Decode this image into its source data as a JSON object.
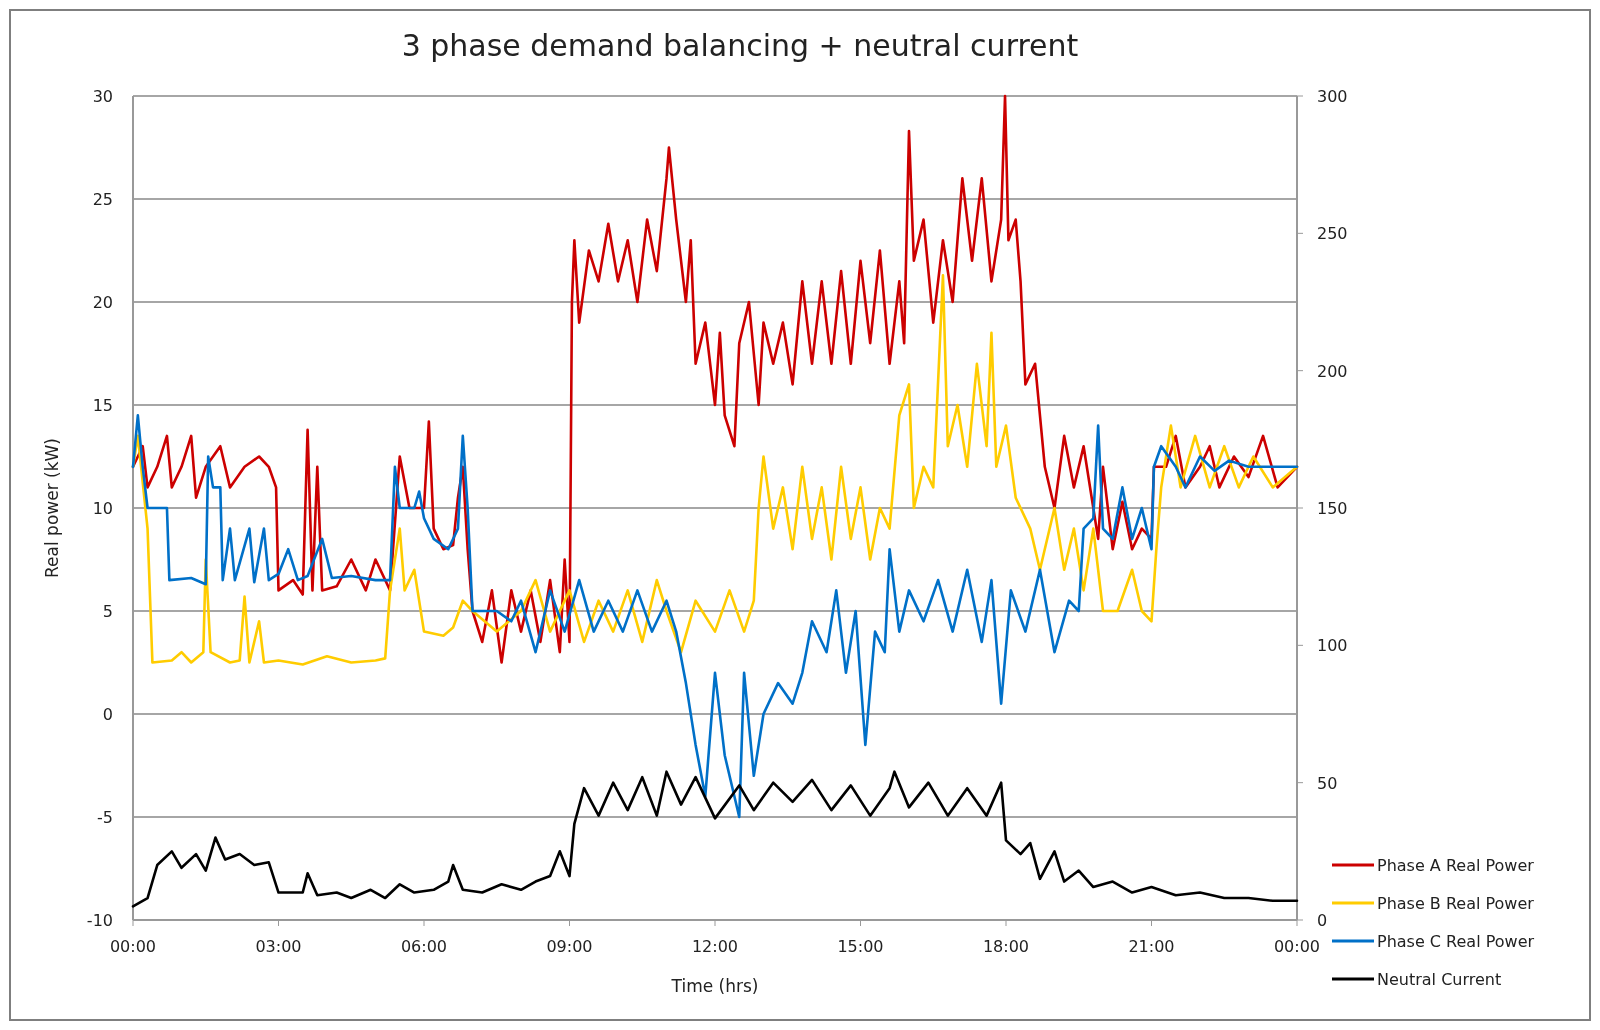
{
  "chart_data": {
    "type": "line",
    "title": "3 phase demand balancing + neutral current",
    "xlabel": "Time (hrs)",
    "ylabel": "Real power (kW)",
    "xlim": [
      0,
      24
    ],
    "xticks": [
      {
        "value": 0,
        "label": "00:00"
      },
      {
        "value": 3,
        "label": "03:00"
      },
      {
        "value": 6,
        "label": "06:00"
      },
      {
        "value": 9,
        "label": "09:00"
      },
      {
        "value": 12,
        "label": "12:00"
      },
      {
        "value": 15,
        "label": "15:00"
      },
      {
        "value": 18,
        "label": "18:00"
      },
      {
        "value": 21,
        "label": "21:00"
      },
      {
        "value": 24,
        "label": "00:00"
      }
    ],
    "ylim": [
      -10,
      30
    ],
    "yticks": [
      -10,
      -5,
      0,
      5,
      10,
      15,
      20,
      25,
      30
    ],
    "y2lim": [
      0,
      300
    ],
    "y2ticks": [
      0,
      50,
      100,
      150,
      200,
      250,
      300
    ],
    "grid": "y",
    "legend": "right",
    "marker": "none",
    "line_style": "solid",
    "series": [
      {
        "name": "Phase A Real Power",
        "color": "#cc0000",
        "x": [
          0,
          0.2,
          0.3,
          0.5,
          0.7,
          0.8,
          1,
          1.2,
          1.3,
          1.5,
          1.8,
          2,
          2.3,
          2.6,
          2.8,
          2.95,
          3,
          3.3,
          3.5,
          3.6,
          3.7,
          3.8,
          3.9,
          4.2,
          4.5,
          4.8,
          5,
          5.3,
          5.5,
          5.7,
          6,
          6.1,
          6.2,
          6.4,
          6.6,
          6.7,
          6.8,
          6.9,
          7,
          7.2,
          7.4,
          7.6,
          7.8,
          8,
          8.2,
          8.4,
          8.6,
          8.8,
          8.9,
          9,
          9.05,
          9.1,
          9.2,
          9.4,
          9.6,
          9.8,
          10,
          10.2,
          10.4,
          10.6,
          10.8,
          11,
          11.05,
          11.2,
          11.4,
          11.5,
          11.6,
          11.8,
          12,
          12.1,
          12.2,
          12.4,
          12.5,
          12.7,
          12.9,
          13,
          13.2,
          13.4,
          13.6,
          13.8,
          14,
          14.2,
          14.4,
          14.6,
          14.8,
          15,
          15.2,
          15.4,
          15.6,
          15.8,
          15.9,
          16,
          16.1,
          16.3,
          16.5,
          16.7,
          16.9,
          17.1,
          17.3,
          17.5,
          17.7,
          17.9,
          17.98,
          18.05,
          18.2,
          18.3,
          18.4,
          18.6,
          18.8,
          19,
          19.2,
          19.4,
          19.6,
          19.8,
          19.9,
          20,
          20.2,
          20.4,
          20.6,
          20.8,
          21,
          21.05,
          21.3,
          21.5,
          21.7,
          22,
          22.2,
          22.4,
          22.7,
          23,
          23.3,
          23.6,
          24
        ],
        "values": [
          12,
          13,
          11,
          12,
          13.5,
          11,
          12,
          13.5,
          10.5,
          12,
          13,
          11,
          12,
          12.5,
          12,
          11,
          6,
          6.5,
          5.8,
          13.8,
          6,
          12,
          6,
          6.2,
          7.5,
          6,
          7.5,
          6,
          12.5,
          10,
          10,
          14.2,
          9,
          8,
          8.2,
          10.5,
          12,
          8,
          5,
          3.5,
          6,
          2.5,
          6,
          4,
          6,
          3.5,
          6.5,
          3,
          7.5,
          3.5,
          20,
          23,
          19,
          22.5,
          21,
          23.8,
          21,
          23,
          20,
          24,
          21.5,
          26,
          27.5,
          24,
          20,
          23,
          17,
          19,
          15,
          18.5,
          14.5,
          13,
          18,
          20,
          15,
          19,
          17,
          19,
          16,
          21,
          17,
          21,
          17,
          21.5,
          17,
          22,
          18,
          22.5,
          17,
          21,
          18,
          28.3,
          22,
          24,
          19,
          23,
          20,
          26,
          22,
          26,
          21,
          24,
          30,
          23,
          24,
          21,
          16,
          17,
          12,
          10,
          13.5,
          11,
          13,
          10,
          8.5,
          12,
          8,
          10.3,
          8,
          9,
          8.5,
          12,
          12,
          13.5,
          11,
          12,
          13,
          11,
          12.5,
          11.5,
          13.5,
          11,
          12
        ]
      },
      {
        "name": "Phase B Real Power",
        "color": "#ffcc00",
        "x": [
          0,
          0.1,
          0.3,
          0.4,
          0.8,
          1,
          1.2,
          1.45,
          1.5,
          1.6,
          2,
          2.2,
          2.3,
          2.4,
          2.6,
          2.7,
          3,
          3.5,
          4,
          4.5,
          5,
          5.2,
          5.3,
          5.5,
          5.6,
          5.8,
          6,
          6.4,
          6.6,
          6.8,
          7,
          7.5,
          8,
          8.3,
          8.6,
          9,
          9.3,
          9.6,
          9.9,
          10.2,
          10.5,
          10.8,
          11,
          11.3,
          11.6,
          12,
          12.3,
          12.6,
          12.8,
          12.9,
          13,
          13.2,
          13.4,
          13.6,
          13.8,
          14,
          14.2,
          14.4,
          14.6,
          14.8,
          15,
          15.2,
          15.4,
          15.6,
          15.8,
          16,
          16.1,
          16.3,
          16.5,
          16.7,
          16.8,
          17,
          17.2,
          17.4,
          17.6,
          17.7,
          17.8,
          18,
          18.2,
          18.5,
          18.7,
          19,
          19.2,
          19.4,
          19.6,
          19.8,
          20,
          20.3,
          20.6,
          20.8,
          21,
          21.1,
          21.2,
          21.4,
          21.6,
          21.9,
          22.2,
          22.5,
          22.8,
          23.1,
          23.5,
          24
        ],
        "values": [
          12,
          13.5,
          9,
          2.5,
          2.6,
          3,
          2.5,
          3,
          7.5,
          3,
          2.5,
          2.6,
          5.7,
          2.5,
          4.5,
          2.5,
          2.6,
          2.4,
          2.8,
          2.5,
          2.6,
          2.7,
          6,
          9,
          6,
          7,
          4,
          3.8,
          4.2,
          5.5,
          5,
          4,
          5,
          6.5,
          4,
          6,
          3.5,
          5.5,
          4,
          6,
          3.5,
          6.5,
          5,
          3,
          5.5,
          4,
          6,
          4,
          5.5,
          10,
          12.5,
          9,
          11,
          8,
          12,
          8.5,
          11,
          7.5,
          12,
          8.5,
          11,
          7.5,
          10,
          9,
          14.5,
          16,
          10,
          12,
          11,
          21.3,
          13,
          15,
          12,
          17,
          13,
          18.5,
          12,
          14,
          10.5,
          9,
          7,
          10,
          7,
          9,
          6,
          9,
          5,
          5,
          7,
          5,
          4.5,
          8,
          11,
          14,
          11,
          13.5,
          11,
          13,
          11,
          12.5,
          11,
          12
        ]
      },
      {
        "name": "Phase C Real Power",
        "color": "#0070c8",
        "x": [
          0,
          0.1,
          0.2,
          0.3,
          0.7,
          0.75,
          1.2,
          1.5,
          1.55,
          1.65,
          1.8,
          1.85,
          2,
          2.1,
          2.4,
          2.5,
          2.7,
          2.8,
          3,
          3.2,
          3.4,
          3.6,
          3.9,
          4.1,
          4.5,
          5,
          5.3,
          5.4,
          5.5,
          5.8,
          5.9,
          6,
          6.2,
          6.5,
          6.7,
          6.8,
          6.9,
          7,
          7.5,
          7.8,
          8,
          8.3,
          8.6,
          8.9,
          9.2,
          9.5,
          9.8,
          10.1,
          10.4,
          10.7,
          11,
          11.2,
          11.4,
          11.6,
          11.8,
          12,
          12.2,
          12.5,
          12.6,
          12.8,
          13,
          13.3,
          13.6,
          13.8,
          14,
          14.3,
          14.5,
          14.7,
          14.9,
          15.1,
          15.3,
          15.5,
          15.6,
          15.8,
          16,
          16.3,
          16.6,
          16.9,
          17.2,
          17.5,
          17.7,
          17.9,
          18.1,
          18.4,
          18.7,
          19,
          19.3,
          19.5,
          19.6,
          19.8,
          19.9,
          20,
          20.2,
          20.4,
          20.6,
          20.8,
          21,
          21.05,
          21.2,
          21.5,
          21.7,
          22,
          22.3,
          22.6,
          23,
          23.5,
          24
        ],
        "values": [
          12,
          14.5,
          12,
          10,
          10,
          6.5,
          6.6,
          6.3,
          12.5,
          11,
          11,
          6.5,
          9,
          6.5,
          9,
          6.4,
          9,
          6.5,
          6.8,
          8,
          6.5,
          6.7,
          8.5,
          6.6,
          6.7,
          6.5,
          6.5,
          12,
          10,
          10,
          10.8,
          9.5,
          8.5,
          8,
          9,
          13.5,
          10,
          5,
          5,
          4.5,
          5.5,
          3,
          6,
          4,
          6.5,
          4,
          5.5,
          4,
          6,
          4,
          5.5,
          4,
          1.5,
          -1.5,
          -4,
          2,
          -2,
          -5,
          2,
          -3,
          0,
          1.5,
          0.5,
          2,
          4.5,
          3,
          6,
          2,
          5,
          -1.5,
          4,
          3,
          8,
          4,
          6,
          4.5,
          6.5,
          4,
          7,
          3.5,
          6.5,
          0.5,
          6,
          4,
          7,
          3,
          5.5,
          5,
          9,
          9.5,
          14,
          9,
          8.5,
          11,
          8.5,
          10,
          8,
          12,
          13,
          12,
          11,
          12.5,
          11.8,
          12.3,
          12,
          12,
          12
        ]
      },
      {
        "name": "Neutral Current",
        "color": "#000000",
        "axis": "y2",
        "x": [
          0,
          0.3,
          0.5,
          0.8,
          1,
          1.3,
          1.5,
          1.7,
          1.9,
          2.2,
          2.5,
          2.8,
          3,
          3.5,
          3.6,
          3.8,
          4.2,
          4.5,
          4.9,
          5.2,
          5.5,
          5.8,
          6.2,
          6.5,
          6.6,
          6.8,
          7.2,
          7.6,
          8,
          8.3,
          8.6,
          8.8,
          9,
          9.1,
          9.3,
          9.6,
          9.9,
          10.2,
          10.5,
          10.8,
          11,
          11.3,
          11.6,
          12,
          12.5,
          12.8,
          13.2,
          13.6,
          14,
          14.4,
          14.8,
          15.2,
          15.6,
          15.7,
          16,
          16.4,
          16.8,
          17.2,
          17.6,
          17.9,
          18,
          18.3,
          18.5,
          18.7,
          19,
          19.2,
          19.5,
          19.8,
          20.2,
          20.6,
          21,
          21.5,
          22,
          22.5,
          23,
          23.5,
          24
        ],
        "values": [
          5,
          8,
          20,
          25,
          19,
          24,
          18,
          30,
          22,
          24,
          20,
          21,
          10,
          10,
          17,
          9,
          10,
          8,
          11,
          8,
          13,
          10,
          11,
          14,
          20,
          11,
          10,
          13,
          11,
          14,
          16,
          25,
          16,
          35,
          48,
          38,
          50,
          40,
          52,
          38,
          54,
          42,
          52,
          37,
          49,
          40,
          50,
          43,
          51,
          40,
          49,
          38,
          48,
          54,
          41,
          50,
          38,
          48,
          38,
          50,
          29,
          24,
          28,
          15,
          25,
          14,
          18,
          12,
          14,
          10,
          12,
          9,
          10,
          8,
          8,
          7,
          7
        ]
      }
    ]
  }
}
